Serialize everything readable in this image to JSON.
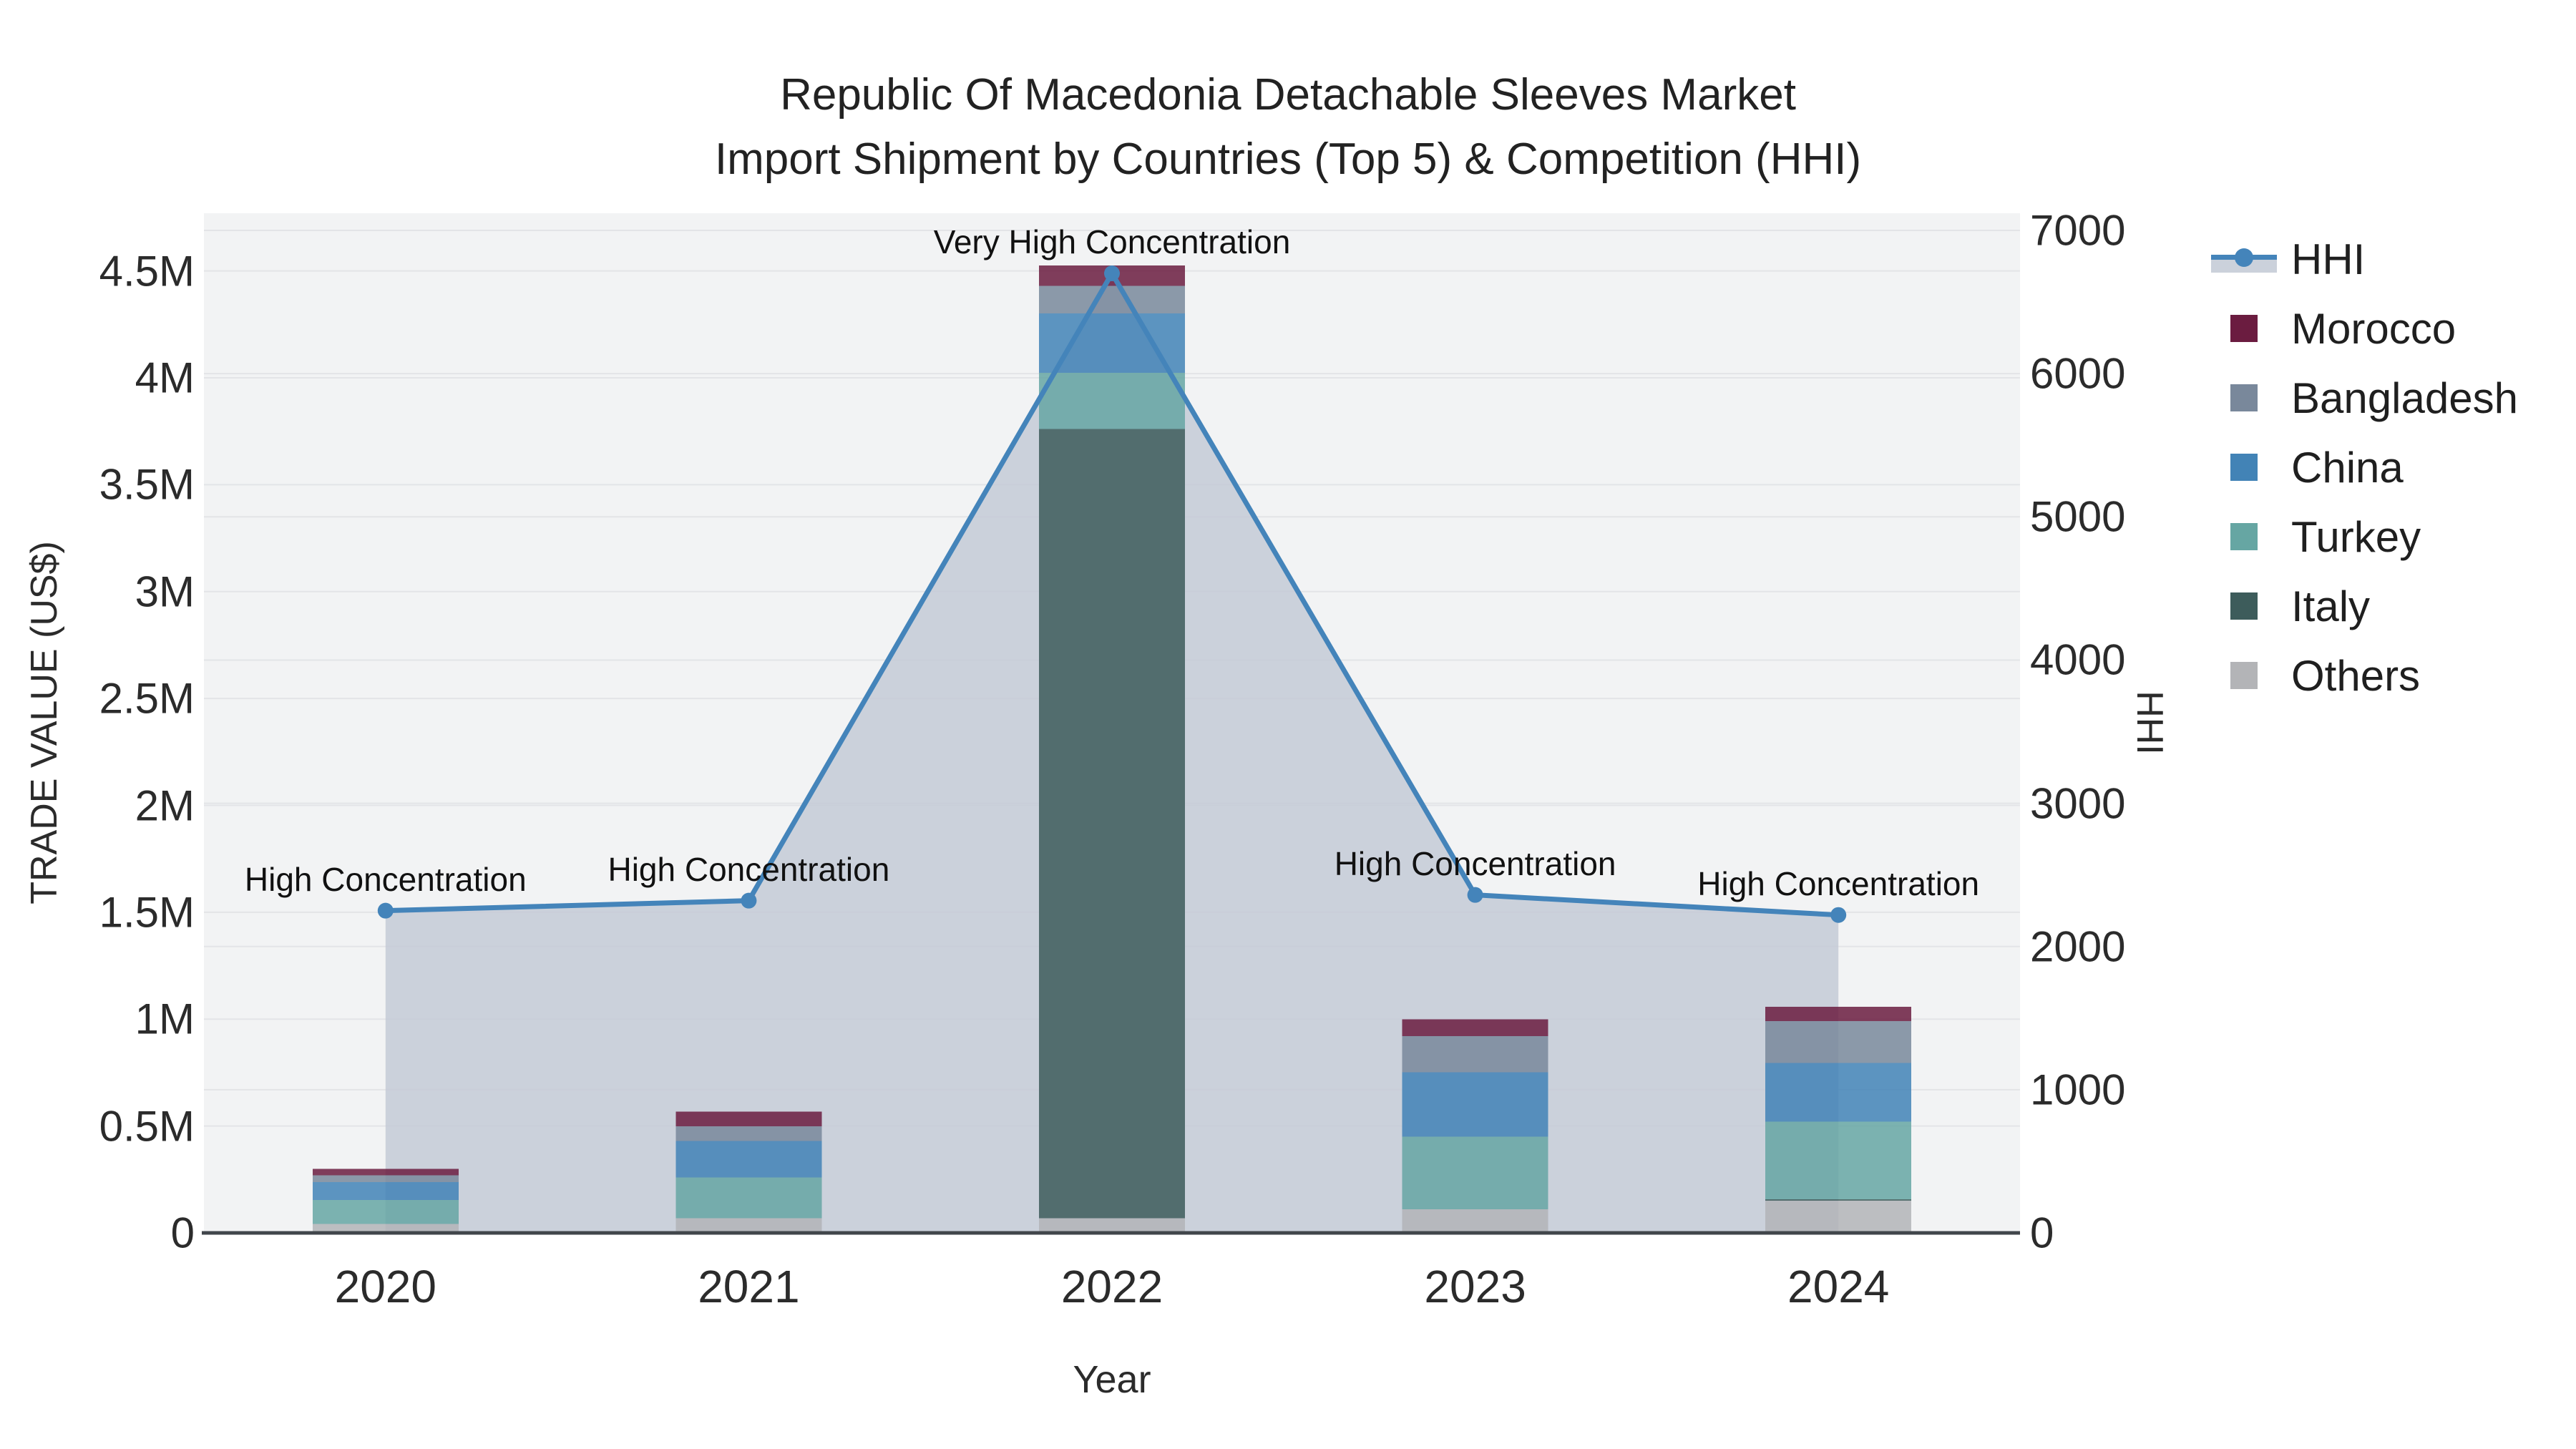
{
  "title": {
    "line1": "Republic Of Macedonia Detachable Sleeves Market",
    "line2": "Import Shipment by Countries (Top 5) & Competition (HHI)"
  },
  "axes": {
    "x": {
      "title": "Year",
      "categories": [
        "2020",
        "2021",
        "2022",
        "2023",
        "2024"
      ]
    },
    "y_left": {
      "title": "TRADE VALUE (US$)",
      "tick_labels": [
        "0",
        "0.5M",
        "1M",
        "1.5M",
        "2M",
        "2.5M",
        "3M",
        "3.5M",
        "4M",
        "4.5M"
      ],
      "tick_values": [
        0,
        500000,
        1000000,
        1500000,
        2000000,
        2500000,
        3000000,
        3500000,
        4000000,
        4500000
      ],
      "range": [
        0,
        4770000
      ]
    },
    "y_right": {
      "title": "HHI",
      "tick_labels": [
        "0",
        "1000",
        "2000",
        "3000",
        "4000",
        "5000",
        "6000",
        "7000"
      ],
      "tick_values": [
        0,
        1000,
        2000,
        3000,
        4000,
        5000,
        6000,
        7000
      ],
      "range": [
        0,
        7120
      ]
    }
  },
  "legend": {
    "items": [
      {
        "label": "HHI",
        "type": "line",
        "color": "#4484BA"
      },
      {
        "label": "Morocco",
        "type": "swatch",
        "color": "#6B1C40"
      },
      {
        "label": "Bangladesh",
        "type": "swatch",
        "color": "#79889B"
      },
      {
        "label": "China",
        "type": "swatch",
        "color": "#4283B6"
      },
      {
        "label": "Turkey",
        "type": "swatch",
        "color": "#66A6A3"
      },
      {
        "label": "Italy",
        "type": "swatch",
        "color": "#3D5C5B"
      },
      {
        "label": "Others",
        "type": "swatch",
        "color": "#B3B4B7"
      }
    ]
  },
  "chart_data": {
    "type": "combo: stacked bar (trade value, left axis) + line with area fill (HHI, right axis)",
    "categories": [
      "2020",
      "2021",
      "2022",
      "2023",
      "2024"
    ],
    "bar_series_bottom_to_top": [
      {
        "name": "Others",
        "color": "#B3B4B7",
        "values": [
          42000,
          69000,
          68000,
          110000,
          150000
        ]
      },
      {
        "name": "Italy",
        "color": "#3D5C5B",
        "values": [
          0,
          0,
          3693000,
          0,
          8000
        ]
      },
      {
        "name": "Turkey",
        "color": "#66A6A3",
        "values": [
          112000,
          191000,
          262000,
          341000,
          363000
        ]
      },
      {
        "name": "China",
        "color": "#4283B6",
        "values": [
          84000,
          170000,
          279000,
          301000,
          274000
        ]
      },
      {
        "name": "Bangladesh",
        "color": "#79889B",
        "values": [
          32000,
          69000,
          128000,
          168000,
          195000
        ]
      },
      {
        "name": "Morocco",
        "color": "#6B1C40",
        "values": [
          29000,
          68000,
          95000,
          80000,
          67000
        ]
      }
    ],
    "bar_totals": [
      299000,
      567000,
      4525000,
      1000000,
      1057000
    ],
    "line_series": {
      "name": "HHI",
      "axis": "y_right",
      "color": "#4484BA",
      "area_fill": "rgba(196,202,214,0.85)",
      "values": [
        2250,
        2320,
        6700,
        2360,
        2220
      ]
    },
    "annotations": [
      {
        "category": "2020",
        "text": "High Concentration"
      },
      {
        "category": "2021",
        "text": "High Concentration"
      },
      {
        "category": "2022",
        "text": "Very High Concentration"
      },
      {
        "category": "2023",
        "text": "High Concentration"
      },
      {
        "category": "2024",
        "text": "High Concentration"
      }
    ],
    "legend_position": "right",
    "grid": true,
    "colors": {
      "plot_background": "#F2F3F4",
      "gridline": "#E3E4E7",
      "axis_line": "#41464B",
      "text": "#2B2B2B"
    }
  }
}
